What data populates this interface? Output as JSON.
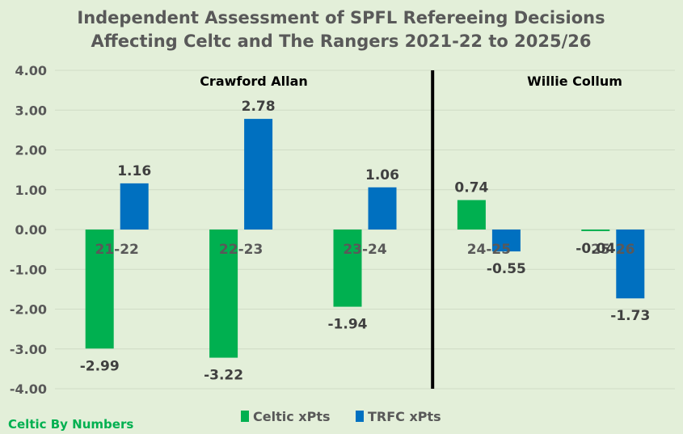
{
  "chart_data": {
    "type": "bar",
    "title": [
      "Independent Assessment of SPFL Refereeing Decisions",
      "Affecting Celtc and The Rangers 2021-22 to 2025/26"
    ],
    "categories": [
      "21-22",
      "22-23",
      "23-24",
      "24-25",
      "25-26"
    ],
    "series": [
      {
        "name": "Celtic xPts",
        "color": "#00b050",
        "values": [
          -2.99,
          -3.22,
          -1.94,
          0.74,
          -0.04
        ],
        "labels": [
          "-2.99",
          "-3.22",
          "-1.94",
          "0.74",
          "-0.04"
        ]
      },
      {
        "name": "TRFC xPts",
        "color": "#0070c0",
        "values": [
          1.16,
          2.78,
          1.06,
          -0.55,
          -1.73
        ],
        "labels": [
          "1.16",
          "2.78",
          "1.06",
          "-0.55",
          "-1.73"
        ]
      }
    ],
    "ylim": [
      -4,
      4
    ],
    "yticks": [
      4,
      3,
      2,
      1,
      0,
      -1,
      -2,
      -3,
      -4
    ],
    "ytick_labels": [
      "4.00",
      "3.00",
      "2.00",
      "1.00",
      "0.00",
      "-1.00",
      "-2.00",
      "-3.00",
      "-4.00"
    ],
    "grid": true,
    "legend_position": "bottom",
    "annotations": [
      "Crawford Allan",
      "Willie Collum"
    ],
    "divider_between": [
      "23-24",
      "24-25"
    ]
  },
  "credit": "Celtic By Numbers",
  "colors": {
    "background": "#e3efd9",
    "grid": "#d0dcc6",
    "text": "#595959",
    "credit": "#00b050",
    "divider": "#000000"
  }
}
